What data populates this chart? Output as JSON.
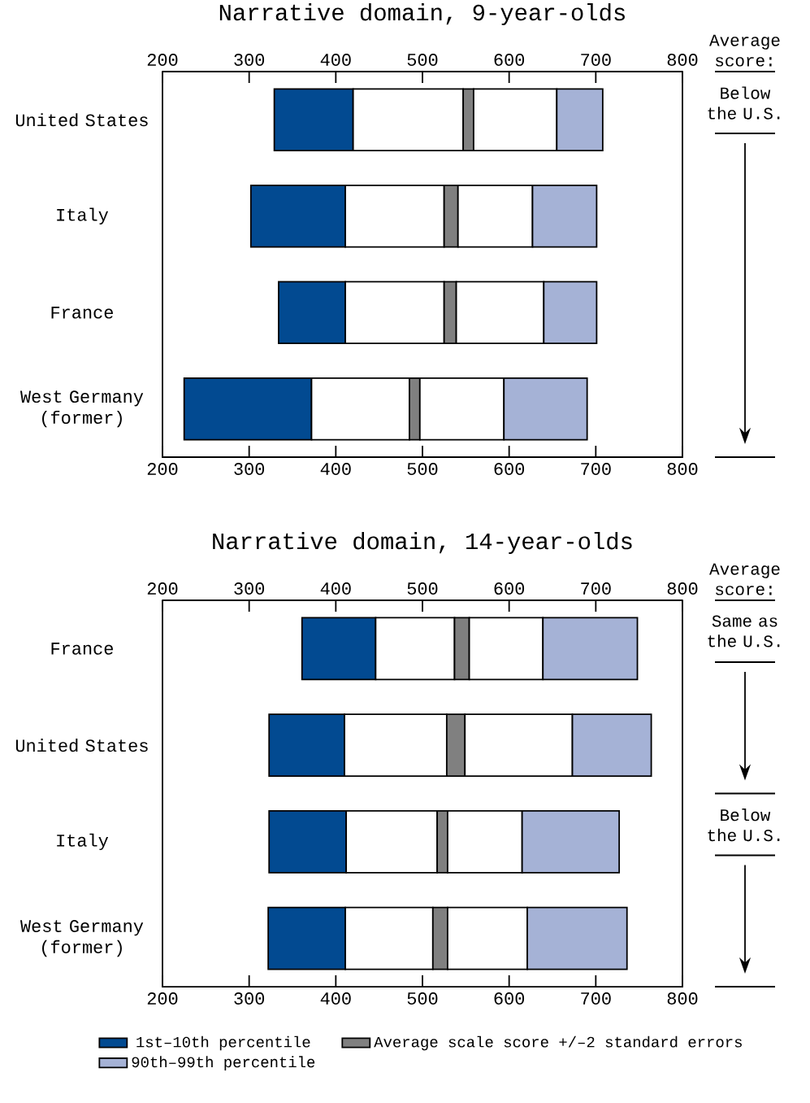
{
  "chart_data": [
    {
      "type": "bar",
      "orientation": "horizontal",
      "title": "Narrative domain, 9-year-olds",
      "categories": [
        "United States",
        "Italy",
        "France",
        "West Germany (former)"
      ],
      "series": [
        {
          "color": "#024a91",
          "base": [
            329,
            302,
            334,
            225
          ],
          "values": [
            91,
            109,
            77,
            147
          ]
        },
        {
          "color": "#ffffff",
          "base": [
            420,
            411,
            411,
            372
          ],
          "values": [
            127,
            114,
            114,
            113
          ]
        },
        {
          "color": "#808080",
          "base": [
            547,
            525,
            525,
            485
          ],
          "values": [
            12,
            16,
            14,
            12
          ]
        },
        {
          "color": "#ffffff",
          "base": [
            559,
            541,
            539,
            497
          ],
          "values": [
            96,
            86,
            101,
            97
          ]
        },
        {
          "color": "#a5b2d6",
          "base": [
            655,
            627,
            640,
            594
          ],
          "values": [
            53,
            74,
            61,
            96
          ]
        }
      ],
      "xlim": [
        200,
        800
      ],
      "xticks": [
        200,
        300,
        400,
        500,
        600,
        700,
        800
      ],
      "x2lim": [
        200,
        800
      ],
      "x2ticks": [
        200,
        300,
        400,
        500,
        600,
        700,
        800
      ],
      "annotations": [
        "Average score:",
        "Below the U.S."
      ]
    },
    {
      "type": "bar",
      "orientation": "horizontal",
      "title": "Narrative domain, 14-year-olds",
      "categories": [
        "France",
        "United States",
        "Italy",
        "West Germany (former)"
      ],
      "series": [
        {
          "name": "1st–10th percentile",
          "color": "#024a91",
          "base": [
            361,
            323,
            323,
            322
          ],
          "values": [
            85,
            87,
            89,
            89
          ]
        },
        {
          "color": "#ffffff",
          "base": [
            446,
            410,
            412,
            411
          ],
          "values": [
            91,
            118,
            105,
            101
          ]
        },
        {
          "name": "Average scale score +/–2 standard errors",
          "color": "#808080",
          "base": [
            537,
            528,
            517,
            512
          ],
          "values": [
            17,
            21,
            12,
            17
          ]
        },
        {
          "color": "#ffffff",
          "base": [
            554,
            549,
            529,
            529
          ],
          "values": [
            85,
            124,
            86,
            92
          ]
        },
        {
          "name": "90th–99th percentile",
          "color": "#a5b2d6",
          "base": [
            639,
            673,
            615,
            621
          ],
          "values": [
            109,
            91,
            112,
            115
          ]
        }
      ],
      "xlim": [
        200,
        800
      ],
      "xticks": [
        200,
        300,
        400,
        500,
        600,
        700,
        800
      ],
      "x2lim": [
        200,
        800
      ],
      "x2ticks": [
        200,
        300,
        400,
        500,
        600,
        700,
        800
      ],
      "annotations": [
        "Average score:",
        "Same as the U.S.",
        "Below the U.S."
      ],
      "legend": "bottom"
    }
  ]
}
